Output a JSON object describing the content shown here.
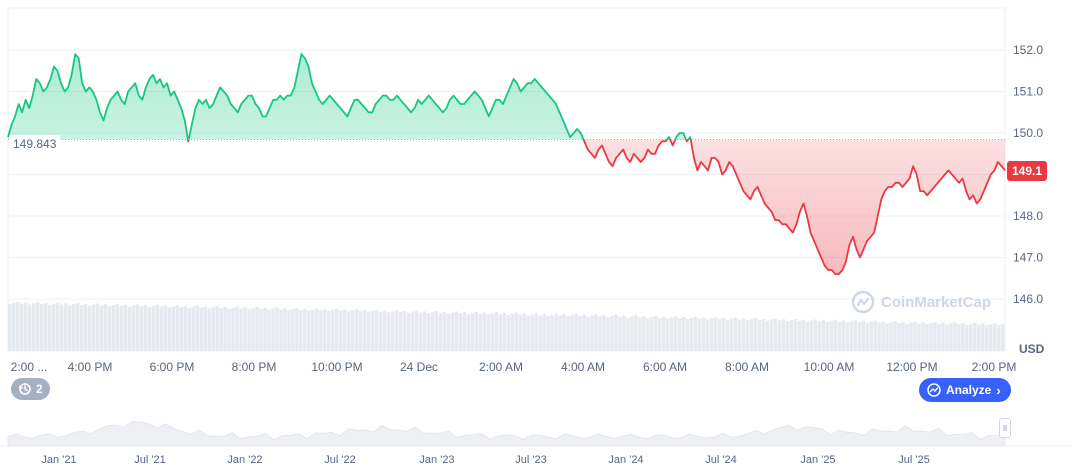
{
  "chart_data": {
    "type": "area",
    "baseline": 149.843,
    "baseline_label": "149.843",
    "current_price_label": "149.1",
    "currency": "USD",
    "ylim": [
      145.9,
      152.5
    ],
    "y_ticks": [
      "146.0",
      "147.0",
      "148.0",
      "149.0",
      "150.0",
      "151.0",
      "152.0"
    ],
    "x_ticks": [
      "2:00 ...",
      "4:00 PM",
      "6:00 PM",
      "8:00 PM",
      "10:00 PM",
      "24 Dec",
      "2:00 AM",
      "4:00 AM",
      "6:00 AM",
      "8:00 AM",
      "10:00 AM",
      "12:00 PM",
      "2:00 PM"
    ],
    "colors": {
      "up": "#16c784",
      "down": "#ea3943",
      "volume": "#e6e9ef",
      "accent": "#3861fb"
    },
    "series": [
      {
        "values": [
          149.9,
          150.2,
          150.4,
          150.7,
          150.5,
          150.8,
          150.6,
          150.9,
          151.3,
          151.2,
          151.0,
          151.1,
          151.3,
          151.6,
          151.5,
          151.2,
          151.0,
          151.1,
          151.4,
          151.9,
          151.8,
          151.2,
          151.0,
          151.1,
          151.0,
          150.8,
          150.5,
          150.3,
          150.6,
          150.8,
          150.9,
          151.0,
          150.8,
          150.7,
          151.0,
          151.1,
          151.2,
          150.9,
          150.8,
          151.1,
          151.3,
          151.4,
          151.2,
          151.3,
          151.1,
          151.2,
          150.9,
          151.0,
          150.8,
          150.6,
          150.3,
          149.8,
          150.2,
          150.6,
          150.8,
          150.7,
          150.8,
          150.6,
          150.7,
          150.9,
          151.1,
          151.0,
          150.9,
          150.7,
          150.6,
          150.5,
          150.7,
          150.8,
          150.9,
          150.9,
          150.7,
          150.6,
          150.4,
          150.4,
          150.6,
          150.8,
          150.8,
          150.9,
          150.8,
          150.9,
          150.9,
          151.1,
          151.5,
          151.9,
          151.8,
          151.6,
          151.2,
          151.0,
          150.8,
          150.7,
          150.8,
          150.9,
          150.8,
          150.7,
          150.6,
          150.5,
          150.4,
          150.6,
          150.8,
          150.8,
          150.7,
          150.6,
          150.5,
          150.5,
          150.7,
          150.8,
          150.9,
          150.9,
          150.8,
          150.8,
          150.9,
          150.8,
          150.7,
          150.6,
          150.5,
          150.6,
          150.8,
          150.7,
          150.8,
          150.9,
          150.8,
          150.7,
          150.6,
          150.5,
          150.6,
          150.8,
          150.9,
          150.8,
          150.7,
          150.7,
          150.8,
          150.9,
          151.0,
          150.9,
          150.8,
          150.6,
          150.4,
          150.6,
          150.8,
          150.8,
          150.7,
          150.9,
          151.1,
          151.3,
          151.2,
          151.0,
          151.1,
          151.2,
          151.2,
          151.3,
          151.2,
          151.1,
          151.0,
          150.9,
          150.8,
          150.7,
          150.5,
          150.3,
          150.1,
          149.9,
          150.0,
          150.1,
          150.0,
          149.8,
          149.6,
          149.5,
          149.4,
          149.6,
          149.7,
          149.5,
          149.3,
          149.2,
          149.4,
          149.5,
          149.6,
          149.4,
          149.3,
          149.5,
          149.4,
          149.3,
          149.4,
          149.6,
          149.5,
          149.5,
          149.7,
          149.8,
          149.8,
          149.9,
          149.7,
          149.9,
          150.0,
          150.0,
          149.8,
          149.9,
          149.4,
          149.1,
          149.3,
          149.2,
          149.1,
          149.4,
          149.4,
          149.3,
          149.0,
          149.1,
          149.3,
          149.2,
          149.0,
          148.8,
          148.6,
          148.5,
          148.4,
          148.6,
          148.7,
          148.5,
          148.3,
          148.2,
          148.1,
          147.9,
          147.9,
          147.8,
          147.8,
          147.7,
          147.6,
          147.8,
          148.1,
          148.3,
          148.0,
          147.6,
          147.4,
          147.2,
          147.0,
          146.8,
          146.7,
          146.7,
          146.6,
          146.6,
          146.7,
          146.9,
          147.3,
          147.5,
          147.2,
          147.0,
          147.2,
          147.4,
          147.5,
          147.6,
          148.0,
          148.4,
          148.6,
          148.7,
          148.7,
          148.8,
          148.8,
          148.7,
          148.8,
          148.9,
          149.2,
          149.0,
          148.6,
          148.6,
          148.5,
          148.6,
          148.7,
          148.8,
          148.9,
          149.0,
          149.1,
          149.0,
          148.9,
          148.8,
          148.9,
          148.6,
          148.4,
          148.5,
          148.3,
          148.4,
          148.6,
          148.8,
          149.0,
          149.1,
          149.3,
          149.2,
          149.1
        ]
      }
    ],
    "navigator_x_ticks": [
      "Jan '21",
      "Jul '21",
      "Jan '22",
      "Jul '22",
      "Jan '23",
      "Jul '23",
      "Jan '24",
      "Jul '24",
      "Jan '25",
      "Jul '25"
    ]
  },
  "watermark": "CoinMarketCap",
  "analyze_label": "Analyze",
  "history_count": "2"
}
